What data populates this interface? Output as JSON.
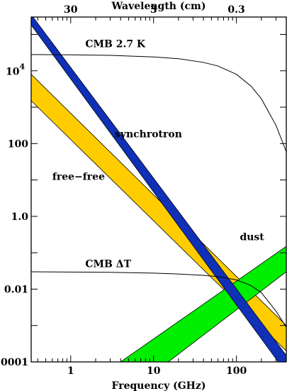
{
  "chart_data": {
    "type": "line",
    "title": "",
    "xlabel": "Frequency (GHz)",
    "x2label": "Wavelength (cm)",
    "ylabel": "",
    "x_scale": "log",
    "y_scale": "log",
    "xlim": [
      0.3333,
      400
    ],
    "ylim": [
      0.0001,
      300000
    ],
    "x_ticks": [
      {
        "value": 1,
        "label": "1"
      },
      {
        "value": 10,
        "label": "10"
      },
      {
        "value": 100,
        "label": "100"
      }
    ],
    "x2_ticks": [
      {
        "value": 1,
        "label": "30"
      },
      {
        "value": 10,
        "label": "3"
      },
      {
        "value": 100,
        "label": "0.3"
      }
    ],
    "y_ticks": [
      {
        "value": 0.0001,
        "label": ".0001"
      },
      {
        "value": 0.01,
        "label": "0.01"
      },
      {
        "value": 1,
        "label": "1.0"
      },
      {
        "value": 100,
        "label": "100"
      }
    ],
    "y_tick_power": {
      "value": 10000,
      "base": "10",
      "exponent": "4"
    },
    "grid": false,
    "legend": "none",
    "colors": {
      "synchrotron": "#1030b8",
      "free_free": "#ffcc00",
      "dust": "#00ee00",
      "line": "#000000"
    },
    "series": [
      {
        "name": "synchrotron",
        "kind": "band",
        "x": [
          0.3333,
          400
        ],
        "upper": [
          350000,
          0.00015
        ],
        "lower": [
          180000,
          5e-05
        ]
      },
      {
        "name": "free-free",
        "kind": "band",
        "x": [
          0.3333,
          400
        ],
        "upper": [
          8000,
          0.001
        ],
        "lower": [
          1500,
          0.0002
        ]
      },
      {
        "name": "dust",
        "kind": "band",
        "x": [
          4,
          400
        ],
        "upper": [
          0.0001,
          0.15
        ],
        "lower": [
          1e-05,
          0.03
        ]
      },
      {
        "name": "CMB 2.7 K",
        "kind": "curve",
        "x": [
          0.3333,
          1,
          3,
          10,
          20,
          40,
          60,
          100,
          150,
          200,
          300,
          400
        ],
        "y": [
          28000,
          27500,
          26500,
          24000,
          21500,
          17000,
          13500,
          8000,
          3800,
          1700,
          320,
          60
        ]
      },
      {
        "name": "CMB ΔT",
        "kind": "curve",
        "x": [
          0.3333,
          1,
          3,
          10,
          20,
          40,
          60,
          100,
          150,
          200,
          300,
          400
        ],
        "y": [
          0.03,
          0.0295,
          0.029,
          0.0275,
          0.026,
          0.024,
          0.022,
          0.018,
          0.0125,
          0.008,
          0.0025,
          0.0009
        ]
      }
    ],
    "annotations": [
      {
        "text": "CMB 2.7 K",
        "x": 1.5,
        "y": 45000
      },
      {
        "text": "synchrotron",
        "x": 3.4,
        "y": 150
      },
      {
        "text": "free−free",
        "x": 0.6,
        "y": 10
      },
      {
        "text": "dust",
        "x": 110,
        "y": 0.22
      },
      {
        "text": "CMB ΔT",
        "x": 1.5,
        "y": 0.04
      }
    ]
  }
}
